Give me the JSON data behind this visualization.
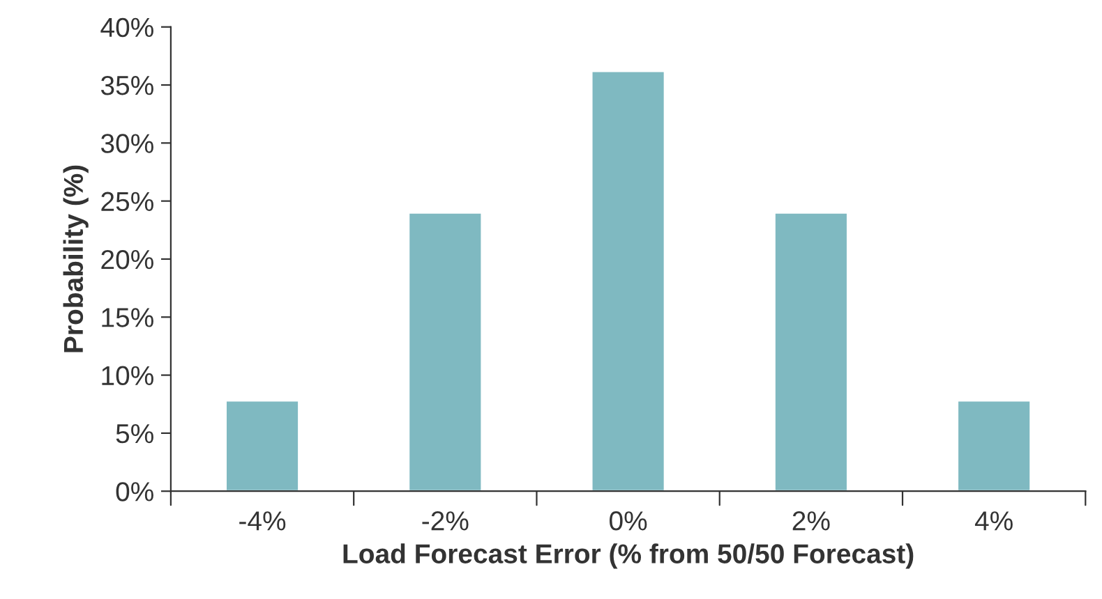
{
  "chart_data": {
    "type": "bar",
    "xlabel": "Load Forecast Error (% from 50/50 Forecast)",
    "ylabel": "Probability (%)",
    "categories": [
      "-4%",
      "-2%",
      "0%",
      "2%",
      "4%"
    ],
    "values": [
      7.8,
      24,
      36.2,
      24,
      7.8
    ],
    "color": "#7fb9c1",
    "ylim": [
      0,
      40
    ],
    "yticks": [
      {
        "value": 0,
        "label": "0%"
      },
      {
        "value": 5,
        "label": "5%"
      },
      {
        "value": 10,
        "label": "10%"
      },
      {
        "value": 15,
        "label": "15%"
      },
      {
        "value": 20,
        "label": "20%"
      },
      {
        "value": 25,
        "label": "25%"
      },
      {
        "value": 30,
        "label": "30%"
      },
      {
        "value": 35,
        "label": "35%"
      },
      {
        "value": 40,
        "label": "40%"
      }
    ],
    "grid": false,
    "legend": false
  }
}
